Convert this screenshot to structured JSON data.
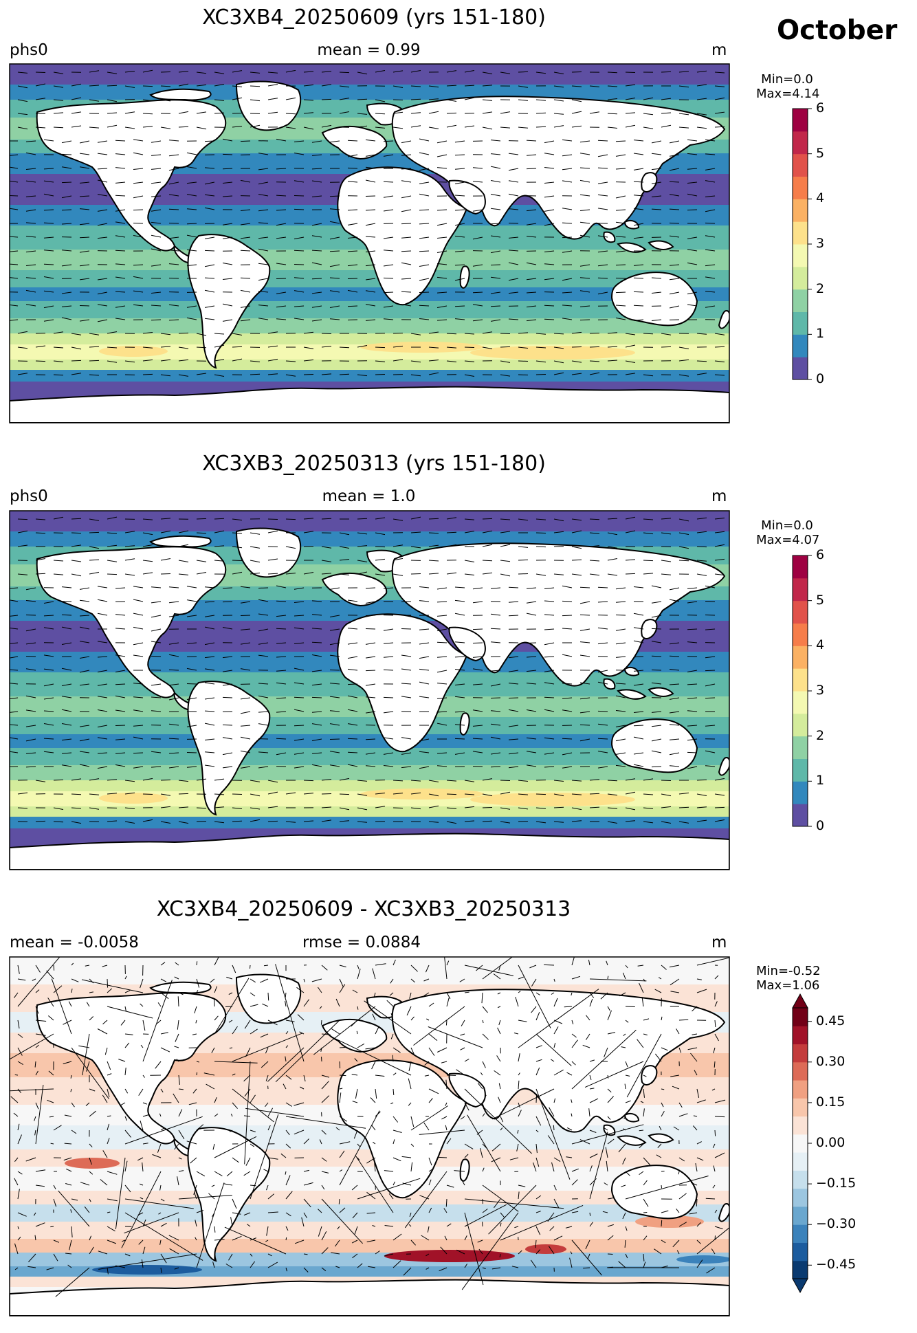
{
  "month": "October",
  "panels": [
    {
      "title": "XC3XB4_20250609 (yrs 151-180)",
      "left_label": "phs0",
      "center_label": "mean = 0.99",
      "right_label": "m",
      "min_label": "Min=0.0",
      "max_label": "Max=4.14",
      "colorbar": {
        "ticks": [
          "0",
          "1",
          "2",
          "3",
          "4",
          "5",
          "6"
        ],
        "range": [
          0,
          6
        ],
        "colors": [
          "#5e4fa2",
          "#3288bd",
          "#5fb8a9",
          "#8fd1a4",
          "#d4ec9c",
          "#f4f9b2",
          "#fde18b",
          "#fbb163",
          "#f67d4a",
          "#e1524a",
          "#c1274a",
          "#9e0142"
        ]
      }
    },
    {
      "title": "XC3XB3_20250313 (yrs 151-180)",
      "left_label": "phs0",
      "center_label": "mean = 1.0",
      "right_label": "m",
      "min_label": "Min=0.0",
      "max_label": "Max=4.07",
      "colorbar": {
        "ticks": [
          "0",
          "1",
          "2",
          "3",
          "4",
          "5",
          "6"
        ],
        "range": [
          0,
          6
        ],
        "colors": [
          "#5e4fa2",
          "#3288bd",
          "#5fb8a9",
          "#8fd1a4",
          "#d4ec9c",
          "#f4f9b2",
          "#fde18b",
          "#fbb163",
          "#f67d4a",
          "#e1524a",
          "#c1274a",
          "#9e0142"
        ]
      }
    },
    {
      "title": "XC3XB4_20250609 - XC3XB3_20250313",
      "left_label": "mean = -0.0058",
      "center_label": "rmse = 0.0884",
      "right_label": "m",
      "min_label": "Min=-0.52",
      "max_label": "Max=1.06",
      "colorbar": {
        "ticks": [
          "−0.45",
          "−0.30",
          "−0.15",
          "0.00",
          "0.15",
          "0.30",
          "0.45"
        ],
        "range": [
          -0.5,
          0.5
        ],
        "colors": [
          "#0a3a70",
          "#1c5c9e",
          "#3b82bb",
          "#6aa7cf",
          "#9cc6e0",
          "#c6dfec",
          "#e6f0f5",
          "#f7f7f7",
          "#fbe3d6",
          "#f8c6ab",
          "#f0a081",
          "#dd6b57",
          "#c43c3c",
          "#a11228",
          "#720017"
        ]
      }
    }
  ]
}
